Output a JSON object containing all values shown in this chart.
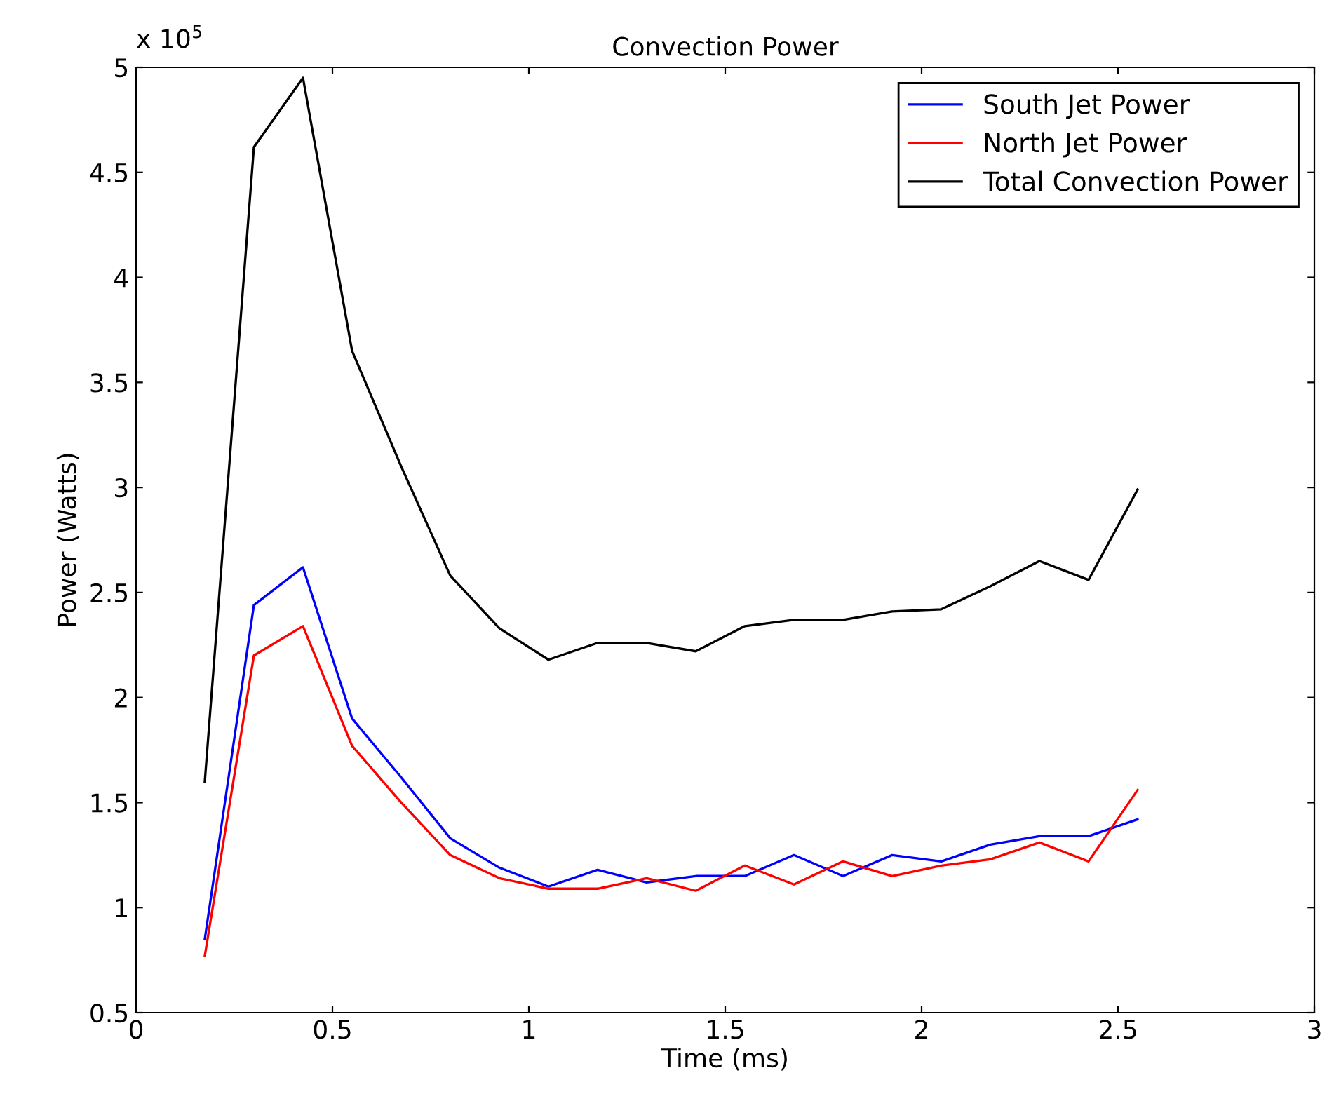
{
  "chart_data": {
    "type": "line",
    "title": "Convection Power",
    "xlabel": "Time (ms)",
    "ylabel": "Power (Watts)",
    "annotations": [
      "x 10$^{5}$"
    ],
    "x": [
      0.175,
      0.3,
      0.425,
      0.55,
      0.675,
      0.8,
      0.925,
      1.05,
      1.175,
      1.3,
      1.425,
      1.55,
      1.675,
      1.8,
      1.925,
      2.05,
      2.175,
      2.3,
      2.425,
      2.55
    ],
    "series": [
      {
        "name": "South Jet Power",
        "color": "#0000ff",
        "values": [
          0.85,
          2.44,
          2.62,
          1.9,
          1.62,
          1.33,
          1.19,
          1.1,
          1.18,
          1.12,
          1.15,
          1.15,
          1.25,
          1.15,
          1.25,
          1.22,
          1.3,
          1.34,
          1.34,
          1.42
        ]
      },
      {
        "name": "North Jet Power",
        "color": "#ff0000",
        "values": [
          0.77,
          2.2,
          2.34,
          1.77,
          1.5,
          1.25,
          1.14,
          1.09,
          1.09,
          1.14,
          1.08,
          1.2,
          1.11,
          1.22,
          1.15,
          1.2,
          1.23,
          1.31,
          1.22,
          1.56
        ]
      },
      {
        "name": "Total Convection Power",
        "color": "#000000",
        "values": [
          1.6,
          4.62,
          4.95,
          3.65,
          3.1,
          2.58,
          2.33,
          2.18,
          2.26,
          2.26,
          2.22,
          2.34,
          2.37,
          2.37,
          2.41,
          2.42,
          2.53,
          2.65,
          2.56,
          2.99
        ]
      }
    ],
    "xlim": [
      0,
      3
    ],
    "xticks": [
      0,
      0.5,
      1,
      1.5,
      2,
      2.5,
      3
    ],
    "ylim": [
      0.5,
      5
    ],
    "yticks": [
      0.5,
      1,
      1.5,
      2,
      2.5,
      3,
      3.5,
      4,
      4.5,
      5
    ],
    "grid": false,
    "legend": "top right",
    "marker": "none",
    "line_style": "solid"
  }
}
